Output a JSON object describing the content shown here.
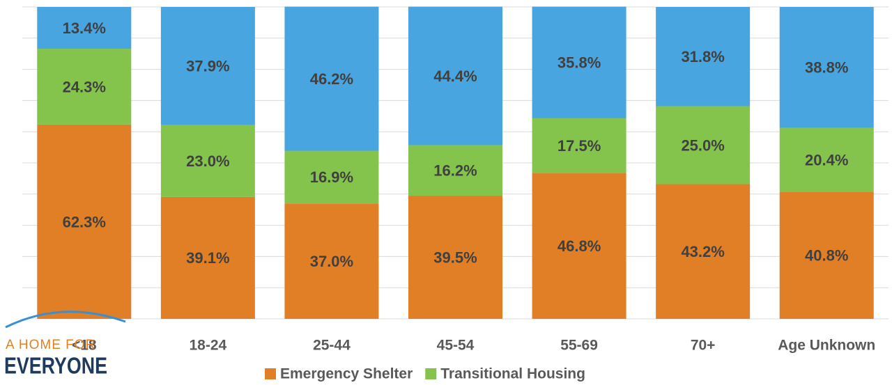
{
  "chart_data": {
    "type": "stacked_bar",
    "categories": [
      "<18",
      "18-24",
      "25-44",
      "45-54",
      "55-69",
      "70+",
      "Age Unknown"
    ],
    "series": [
      {
        "name": "Emergency Shelter",
        "color": "#e07f26",
        "values": [
          62.3,
          39.1,
          37.0,
          39.5,
          46.8,
          43.2,
          40.8
        ],
        "value_labels": [
          "62.3%",
          "39.1%",
          "37.0%",
          "39.5%",
          "46.8%",
          "43.2%",
          "40.8%"
        ]
      },
      {
        "name": "Transitional Housing",
        "color": "#84c44c",
        "values": [
          24.3,
          23.0,
          16.9,
          16.2,
          17.5,
          25.0,
          20.4
        ],
        "value_labels": [
          "24.3%",
          "23.0%",
          "16.9%",
          "16.2%",
          "17.5%",
          "25.0%",
          "20.4%"
        ]
      },
      {
        "color": "#48a5df",
        "values": [
          13.4,
          37.9,
          46.2,
          44.4,
          35.8,
          31.8,
          38.8
        ],
        "value_labels": [
          "13.4%",
          "37.9%",
          "46.2%",
          "44.4%",
          "35.8%",
          "31.8%",
          "38.8%"
        ]
      }
    ],
    "ylim": [
      0,
      100
    ],
    "yticks": [
      0,
      10,
      20,
      30,
      40,
      50,
      60,
      70,
      80,
      90,
      100
    ],
    "grid": true,
    "legend": "bottom"
  },
  "logo": {
    "line1": "A HOME FOR",
    "line2": "EVERYONE"
  }
}
